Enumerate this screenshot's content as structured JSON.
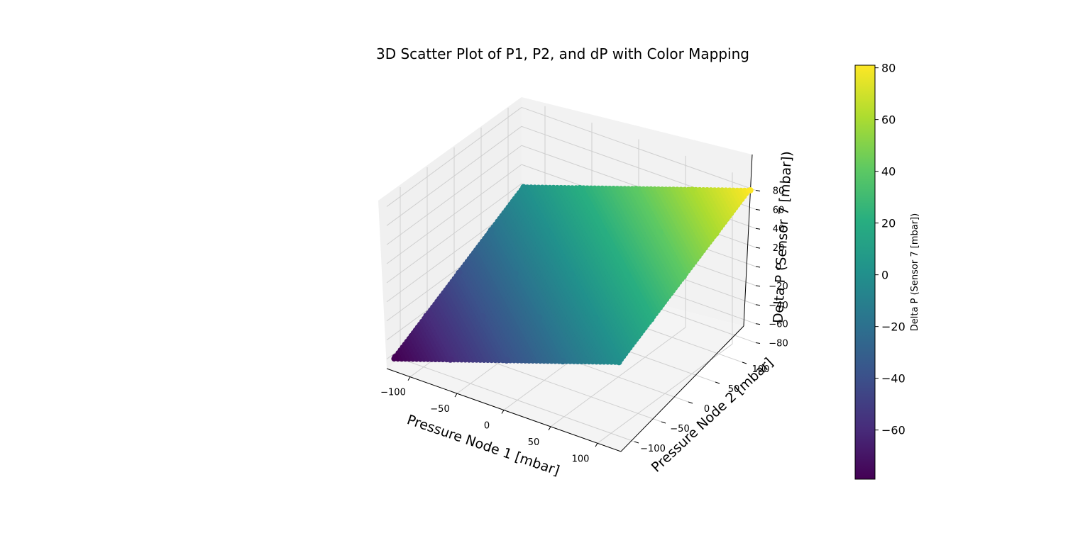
{
  "chart_data": {
    "type": "scatter",
    "projection": "3d",
    "title": "3D Scatter Plot of P1, P2, and dP with Color Mapping",
    "xlabel": "Pressure Node 1 [mbar]",
    "ylabel": "Pressure Node 2 [mbar]",
    "zlabel": "Delta P (Sensor 7 [mbar])",
    "colorbar_label": "Delta P (Sensor 7 [mbar])",
    "colormap": "viridis",
    "grid": true,
    "x_ticks": [
      "−100",
      "−50",
      "0",
      "50",
      "100"
    ],
    "y_ticks": [
      "−100",
      "−50",
      "0",
      "50",
      "100"
    ],
    "z_ticks": [
      "−80",
      "−60",
      "−40",
      "−20",
      "0",
      "20",
      "40",
      "60",
      "80"
    ],
    "colorbar_ticks": [
      "−60",
      "−40",
      "−20",
      "0",
      "20",
      "40",
      "60",
      "80"
    ],
    "xlim": [
      -125,
      125
    ],
    "ylim": [
      -125,
      125
    ],
    "zlim": [
      -90,
      90
    ],
    "colorbar_range": [
      -79,
      81
    ],
    "relation": "dP = (P1 + P2) / 3",
    "points": [
      {
        "P1": -120,
        "P2": -118,
        "dP": -79
      },
      {
        "P1": -120,
        "P2": -60,
        "dP": -60
      },
      {
        "P1": -120,
        "P2": 0,
        "dP": -40
      },
      {
        "P1": -120,
        "P2": 60,
        "dP": -20
      },
      {
        "P1": -120,
        "P2": 120,
        "dP": 0
      },
      {
        "P1": -60,
        "P2": -120,
        "dP": -60
      },
      {
        "P1": -60,
        "P2": -60,
        "dP": -40
      },
      {
        "P1": -60,
        "P2": 0,
        "dP": -20
      },
      {
        "P1": -60,
        "P2": 60,
        "dP": 0
      },
      {
        "P1": -60,
        "P2": 120,
        "dP": 20
      },
      {
        "P1": 0,
        "P2": -120,
        "dP": -40
      },
      {
        "P1": 0,
        "P2": -60,
        "dP": -20
      },
      {
        "P1": 0,
        "P2": 0,
        "dP": 0
      },
      {
        "P1": 0,
        "P2": 60,
        "dP": 20
      },
      {
        "P1": 0,
        "P2": 120,
        "dP": 40
      },
      {
        "P1": 60,
        "P2": -120,
        "dP": -20
      },
      {
        "P1": 60,
        "P2": -60,
        "dP": 0
      },
      {
        "P1": 60,
        "P2": 0,
        "dP": 20
      },
      {
        "P1": 60,
        "P2": 60,
        "dP": 40
      },
      {
        "P1": 60,
        "P2": 120,
        "dP": 60
      },
      {
        "P1": 120,
        "P2": -120,
        "dP": 0
      },
      {
        "P1": 120,
        "P2": -60,
        "dP": 20
      },
      {
        "P1": 120,
        "P2": 0,
        "dP": 40
      },
      {
        "P1": 120,
        "P2": 60,
        "dP": 60
      },
      {
        "P1": 122,
        "P2": 120,
        "dP": 81
      }
    ]
  }
}
